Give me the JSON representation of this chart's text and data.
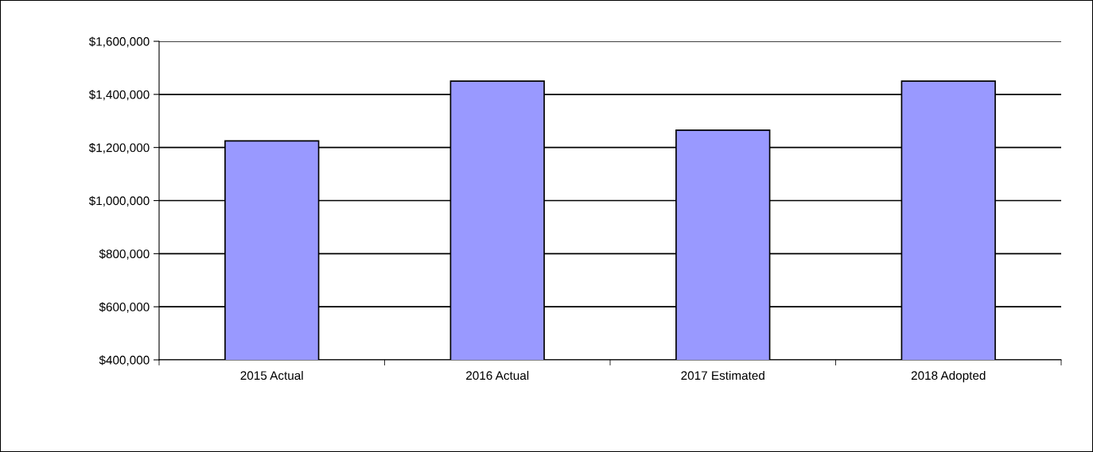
{
  "chart_data": {
    "type": "bar",
    "categories": [
      "2015 Actual",
      "2016 Actual",
      "2017 Estimated",
      "2018 Adopted"
    ],
    "values": [
      1225000,
      1450000,
      1265000,
      1450000
    ],
    "color": "#9999ff",
    "ylim": [
      400000,
      1600000
    ],
    "yticks": [
      {
        "value": 400000,
        "label": "$400,000"
      },
      {
        "value": 600000,
        "label": "$600,000"
      },
      {
        "value": 800000,
        "label": "$800,000"
      },
      {
        "value": 1000000,
        "label": "$1,000,000"
      },
      {
        "value": 1200000,
        "label": "$1,200,000"
      },
      {
        "value": 1400000,
        "label": "$1,400,000"
      },
      {
        "value": 1600000,
        "label": "$1,600,000"
      }
    ],
    "grid": "y",
    "legend": false
  }
}
